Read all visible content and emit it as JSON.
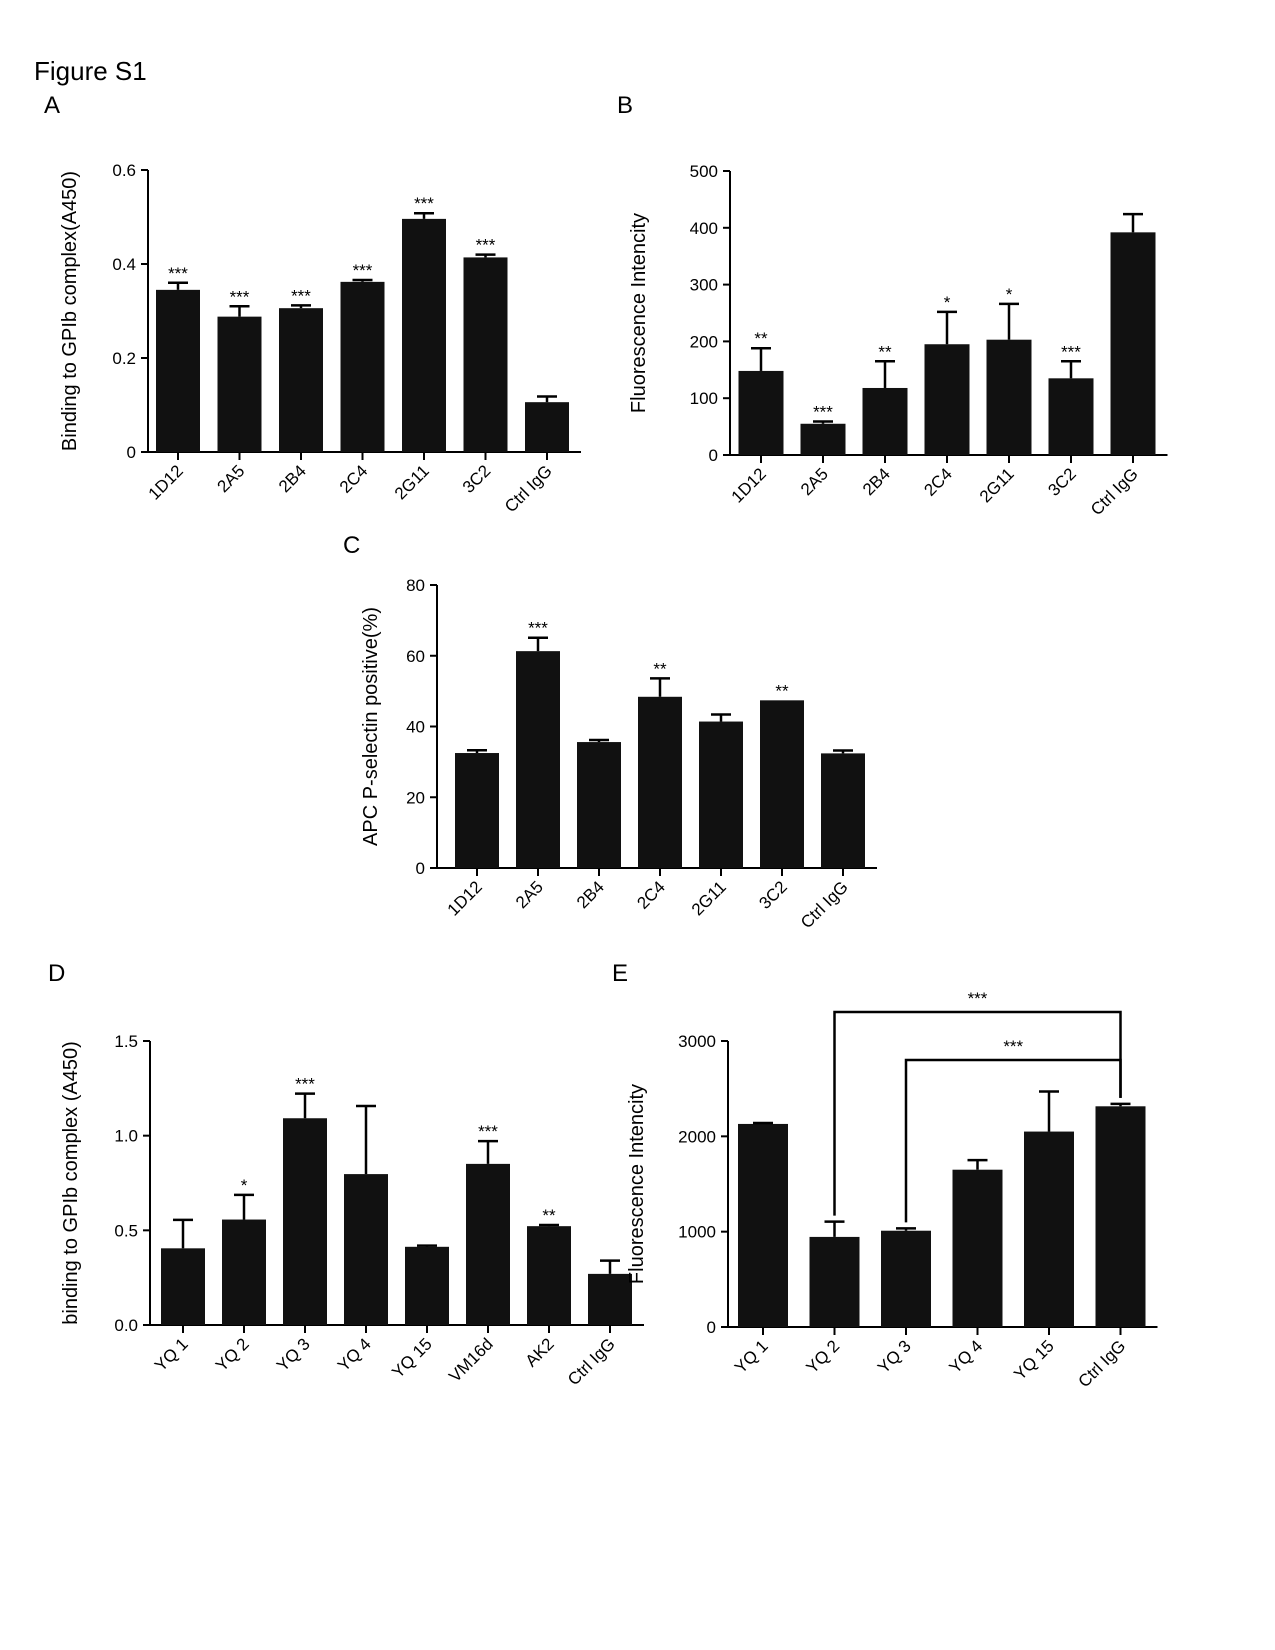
{
  "figure_title": "Figure S1",
  "chart_data": [
    {
      "panel": "A",
      "type": "bar",
      "ylabel": "Binding to GPIb complex(A450)",
      "categories": [
        "1D12",
        "2A5",
        "2B4",
        "2C4",
        "2G11",
        "3C2",
        "Ctrl IgG"
      ],
      "values": [
        0.345,
        0.288,
        0.306,
        0.362,
        0.496,
        0.414,
        0.106
      ],
      "errors": [
        0.015,
        0.022,
        0.006,
        0.004,
        0.012,
        0.006,
        0.012
      ],
      "significance": [
        "***",
        "***",
        "***",
        "***",
        "***",
        "***",
        ""
      ],
      "yticks": [
        0,
        0.2,
        0.4,
        0.6
      ],
      "ytick_labels": [
        "0",
        "0.2",
        "0.4",
        "0.6"
      ],
      "ylim": [
        0,
        0.6
      ],
      "bar_color": "#111111"
    },
    {
      "panel": "B",
      "type": "bar",
      "ylabel": "Fluorescence Intencity",
      "categories": [
        "1D12",
        "2A5",
        "2B4",
        "2C4",
        "2G11",
        "3C2",
        "Ctrl IgG"
      ],
      "values": [
        148,
        55,
        118,
        195,
        203,
        135,
        392
      ],
      "errors": [
        40,
        4,
        47,
        57,
        63,
        30,
        32
      ],
      "significance": [
        "**",
        "***",
        "**",
        "*",
        "*",
        "***",
        ""
      ],
      "yticks": [
        0,
        100,
        200,
        300,
        400,
        500
      ],
      "ytick_labels": [
        "0",
        "100",
        "200",
        "300",
        "400",
        "500"
      ],
      "ylim": [
        0,
        500
      ],
      "bar_color": "#111111"
    },
    {
      "panel": "C",
      "type": "bar",
      "ylabel": "APC P-selectin positive(%)",
      "categories": [
        "1D12",
        "2A5",
        "2B4",
        "2C4",
        "2G11",
        "3C2",
        "Ctrl IgG"
      ],
      "values": [
        32.5,
        61.3,
        35.6,
        48.4,
        41.4,
        47.4,
        32.4
      ],
      "errors": [
        0.8,
        3.8,
        0.6,
        5.2,
        2.0,
        0,
        0.8
      ],
      "significance": [
        "",
        "***",
        "",
        "**",
        "",
        "**",
        ""
      ],
      "yticks": [
        0,
        20,
        40,
        60,
        80
      ],
      "ytick_labels": [
        "0",
        "20",
        "40",
        "60",
        "80"
      ],
      "ylim": [
        0,
        80
      ],
      "bar_color": "#111111"
    },
    {
      "panel": "D",
      "type": "bar",
      "ylabel": "binding to GPIb complex (A450)",
      "categories": [
        "YQ 1",
        "YQ 2",
        "YQ 3",
        "YQ 4",
        "YQ 15",
        "VM16d",
        "AK2",
        "Ctrl IgG"
      ],
      "values": [
        0.405,
        0.557,
        1.092,
        0.797,
        0.413,
        0.851,
        0.522,
        0.27
      ],
      "errors": [
        0.15,
        0.13,
        0.13,
        0.36,
        0.006,
        0.12,
        0.006,
        0.07
      ],
      "significance": [
        "",
        "*",
        "***",
        "",
        "",
        "***",
        "**",
        ""
      ],
      "yticks": [
        0,
        0.5,
        1.0,
        1.5
      ],
      "ytick_labels": [
        "0.0",
        "0.5",
        "1.0",
        "1.5"
      ],
      "ylim": [
        0,
        1.5
      ],
      "bar_color": "#111111"
    },
    {
      "panel": "E",
      "type": "bar",
      "ylabel": "Fluorescence Intencity",
      "categories": [
        "YQ 1",
        "YQ 2",
        "YQ 3",
        "YQ 4",
        "YQ 15",
        "Ctrl IgG"
      ],
      "values": [
        2130,
        945,
        1010,
        1650,
        2050,
        2315
      ],
      "errors": [
        10,
        160,
        25,
        100,
        420,
        25
      ],
      "significance": [
        "",
        "",
        "",
        "",
        "",
        ""
      ],
      "yticks": [
        0,
        1000,
        2000,
        3000
      ],
      "ytick_labels": [
        "0",
        "1000",
        "2000",
        "3000"
      ],
      "ylim": [
        0,
        3000
      ],
      "bar_color": "#111111",
      "comparisons": [
        {
          "from": "YQ 2",
          "to": "Ctrl IgG",
          "label": "***"
        },
        {
          "from": "YQ 3",
          "to": "Ctrl IgG",
          "label": "***"
        }
      ]
    }
  ]
}
